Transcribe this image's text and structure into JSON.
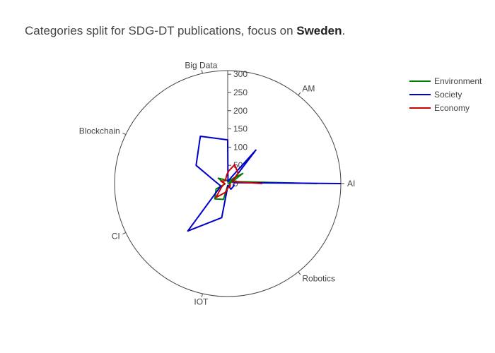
{
  "title": {
    "prefix": "Categories split for SDG-DT publications, focus on ",
    "emphasis": "Sweden",
    "suffix": "."
  },
  "chart_data": {
    "type": "polar-line",
    "title": "Categories split for SDG-DT publications, focus on Sweden.",
    "categories": [
      "AI",
      "AM",
      "Big Data",
      "Blockchain",
      "CI",
      "IOT",
      "Robotics"
    ],
    "radial_range": [
      0,
      310
    ],
    "radial_ticks": [
      0,
      50,
      100,
      150,
      200,
      250,
      300
    ],
    "legend_position": "top-right",
    "series": [
      {
        "name": "Environment",
        "color": "#008000",
        "values": [
          [
            0,
            245
          ],
          [
            18,
            18
          ],
          [
            33,
            16
          ],
          [
            42,
            16
          ],
          [
            0,
            3
          ],
          [
            20,
            12
          ],
          [
            34,
            50
          ],
          [
            43,
            22
          ],
          [
            60,
            8
          ],
          [
            72,
            5
          ],
          [
            110,
            10
          ],
          [
            150,
            30
          ],
          [
            170,
            10
          ],
          [
            190,
            8
          ],
          [
            205,
            35
          ],
          [
            230,
            55
          ],
          [
            255,
            45
          ],
          [
            270,
            5
          ],
          [
            300,
            8
          ],
          [
            330,
            6
          ],
          [
            345,
            5
          ]
        ]
      },
      {
        "name": "Society",
        "color": "#0000cc",
        "values": [
          [
            0,
            310
          ],
          [
            10,
            15
          ],
          [
            30,
            15
          ],
          [
            50,
            120
          ],
          [
            60,
            20
          ],
          [
            70,
            10
          ],
          [
            80,
            5
          ],
          [
            90,
            120
          ],
          [
            120,
            150
          ],
          [
            150,
            100
          ],
          [
            170,
            35
          ],
          [
            200,
            20
          ],
          [
            230,
            170
          ],
          [
            260,
            95
          ],
          [
            280,
            5
          ],
          [
            300,
            18
          ],
          [
            340,
            18
          ],
          [
            350,
            15
          ]
        ]
      },
      {
        "name": "Economy",
        "color": "#cc0000",
        "values": [
          [
            0,
            95
          ],
          [
            20,
            15
          ],
          [
            28,
            15
          ],
          [
            45,
            40
          ],
          [
            70,
            55
          ],
          [
            85,
            35
          ],
          [
            95,
            25
          ],
          [
            110,
            15
          ],
          [
            130,
            10
          ],
          [
            160,
            20
          ],
          [
            180,
            8
          ],
          [
            195,
            12
          ],
          [
            210,
            20
          ],
          [
            230,
            50
          ],
          [
            255,
            25
          ],
          [
            280,
            10
          ],
          [
            300,
            12
          ],
          [
            330,
            8
          ],
          [
            348,
            5
          ]
        ]
      }
    ]
  }
}
